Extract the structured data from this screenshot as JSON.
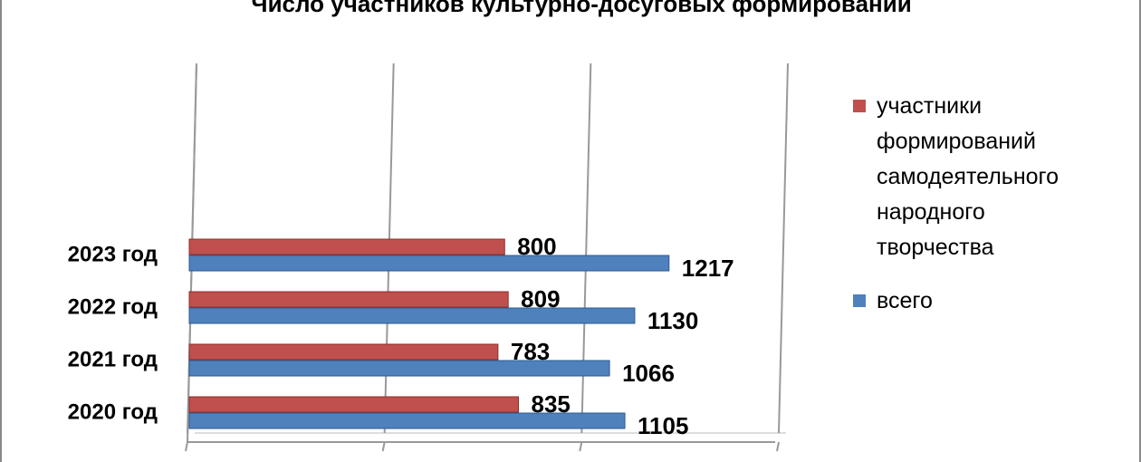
{
  "chart_data": {
    "type": "hbar",
    "title": "Число участников культурно-досуговых формирований",
    "categories": [
      "2020 год",
      "2021 год",
      "2022 год",
      "2023 год"
    ],
    "series": [
      {
        "name": "участники формирований самодеятельного народного творчества",
        "color": "#c0504d",
        "values": [
          835,
          783,
          809,
          800
        ]
      },
      {
        "name": "всего",
        "color": "#4f81bd",
        "values": [
          1105,
          1066,
          1130,
          1217
        ]
      }
    ],
    "xlim": [
      0,
      1500
    ],
    "xticks": [
      0,
      500,
      1000,
      1500
    ],
    "grid": true,
    "legend": "right"
  }
}
